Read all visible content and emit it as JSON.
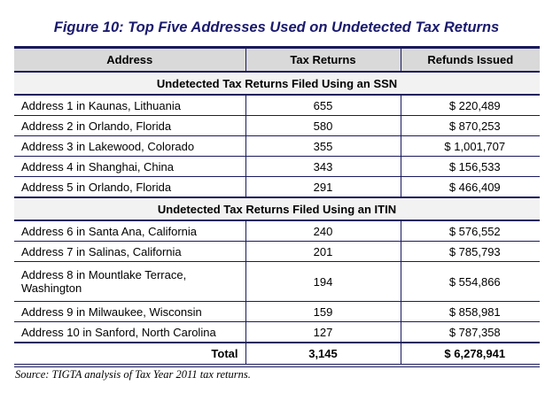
{
  "title": "Figure 10:  Top Five Addresses Used on Undetected Tax Returns",
  "headers": [
    "Address",
    "Tax Returns",
    "Refunds Issued"
  ],
  "sections": [
    {
      "label": "Undetected Tax Returns Filed Using an SSN",
      "rows": [
        {
          "address": "Address 1 in Kaunas, Lithuania",
          "returns": "655",
          "refunds": "$ 220,489"
        },
        {
          "address": "Address 2 in Orlando, Florida",
          "returns": "580",
          "refunds": "$ 870,253"
        },
        {
          "address": "Address 3 in Lakewood, Colorado",
          "returns": "355",
          "refunds": "$ 1,001,707"
        },
        {
          "address": "Address 4 in Shanghai, China",
          "returns": "343",
          "refunds": "$ 156,533"
        },
        {
          "address": "Address 5 in Orlando, Florida",
          "returns": "291",
          "refunds": "$ 466,409"
        }
      ]
    },
    {
      "label": "Undetected Tax Returns Filed Using an ITIN",
      "rows": [
        {
          "address": "Address 6 in Santa Ana, California",
          "returns": "240",
          "refunds": "$ 576,552"
        },
        {
          "address": "Address 7 in Salinas, California",
          "returns": "201",
          "refunds": "$ 785,793"
        },
        {
          "address": "Address 8 in Mountlake Terrace, Washington",
          "returns": "194",
          "refunds": "$ 554,866"
        },
        {
          "address": "Address 9 in Milwaukee, Wisconsin",
          "returns": "159",
          "refunds": "$ 858,981"
        },
        {
          "address": "Address 10 in Sanford, North Carolina",
          "returns": "127",
          "refunds": "$ 787,358"
        }
      ]
    }
  ],
  "total": {
    "label": "Total",
    "returns": "3,145",
    "refunds": "$ 6,278,941"
  },
  "source": "Source:  TIGTA analysis of Tax Year 2011 tax returns."
}
